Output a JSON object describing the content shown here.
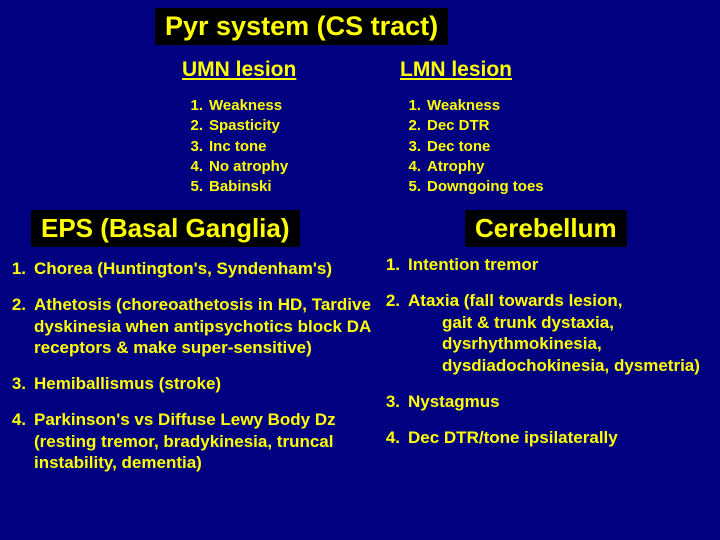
{
  "colors": {
    "background": "#000080",
    "text": "#ffff00",
    "box_bg": "#000000"
  },
  "main_title": "Pyr system (CS tract)",
  "umn": {
    "header": "UMN lesion",
    "items": [
      "Weakness",
      "Spasticity",
      "Inc tone",
      "No atrophy",
      "Babinski"
    ]
  },
  "lmn": {
    "header": "LMN lesion",
    "items": [
      "Weakness",
      "Dec DTR",
      "Dec tone",
      "Atrophy",
      "Downgoing toes"
    ]
  },
  "eps": {
    "title": "EPS (Basal Ganglia)",
    "items": [
      "Chorea (Huntington's, Syndenham's)",
      "Athetosis (choreoathetosis in HD, Tardive dyskinesia when antipsychotics block DA receptors & make super-sensitive)",
      "Hemiballismus (stroke)",
      "Parkinson's vs Diffuse Lewy Body Dz (resting tremor, bradykinesia, truncal instability, dementia)"
    ]
  },
  "cerebellum": {
    "title": "Cerebellum",
    "items": [
      "Intention tremor",
      "Ataxia (fall towards lesion, gait & trunk dystaxia, dysrhythmokinesia, dysdiadochokinesia, dysmetria)",
      "Nystagmus",
      "Dec DTR/tone ipsilaterally"
    ]
  },
  "typography": {
    "main_title_fontsize": 27,
    "sub_header_fontsize": 21,
    "small_list_fontsize": 15,
    "section_title_fontsize": 26,
    "big_list_fontsize": 17,
    "font_family": "Arial",
    "font_weight": "bold"
  }
}
